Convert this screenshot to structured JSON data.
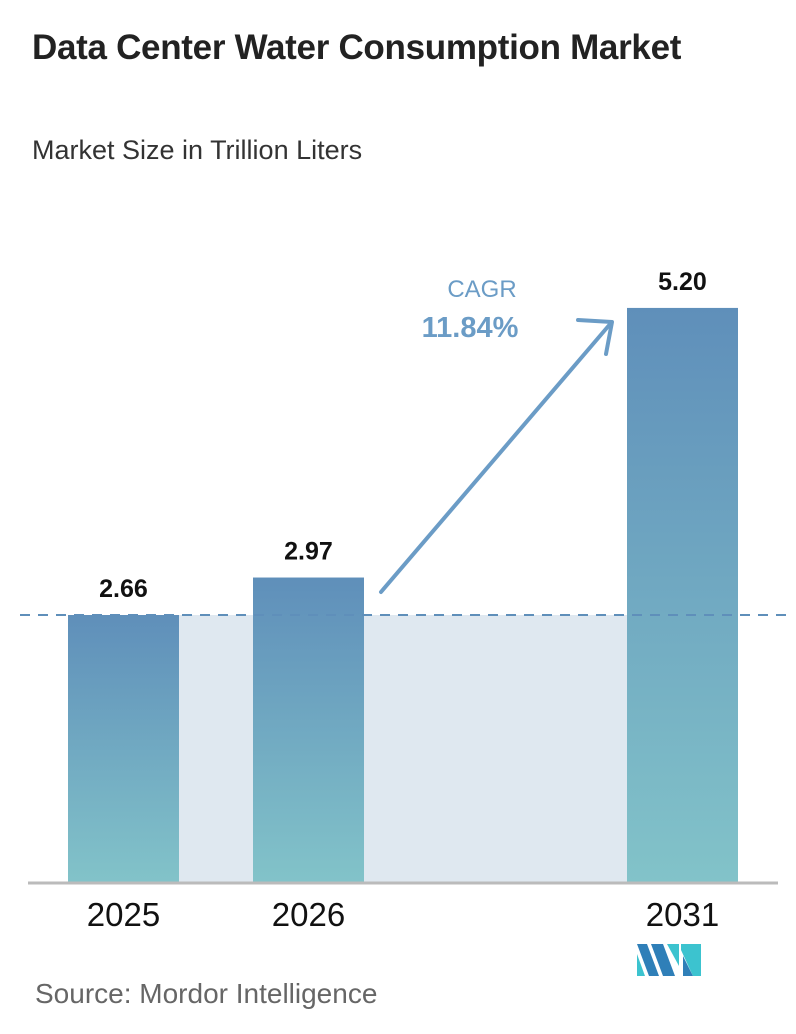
{
  "chart_data": {
    "type": "bar",
    "title": "Data Center Water Consumption Market",
    "subtitle": "Market Size in Trillion Liters",
    "categories": [
      "2025",
      "2026",
      "2031"
    ],
    "values": [
      2.66,
      2.97,
      5.2
    ],
    "value_labels": [
      "2.66",
      "2.97",
      "5.20"
    ],
    "annotation": {
      "label": "CAGR",
      "value": "11.84%"
    },
    "grid": false,
    "legend": "none",
    "colors": {
      "bar_top": "#5f8fba",
      "bar_bottom": "#82c3c9",
      "band": "#dfe8f0",
      "accent": "#6b9cc6"
    }
  },
  "source": "Source:  Mordor Intelligence",
  "logo": {
    "text": "Mordor Intelligence",
    "colors": [
      "#2f7fb8",
      "#3cc3cf"
    ]
  }
}
